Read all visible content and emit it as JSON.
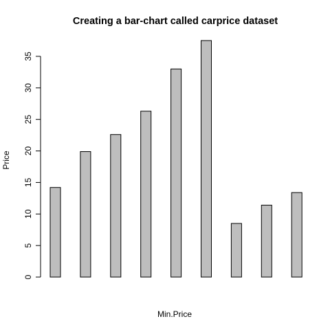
{
  "chart_data": {
    "type": "bar",
    "title": "Creating a bar-chart called carprice dataset",
    "xlabel": "Min.Price",
    "ylabel": "Price",
    "values": [
      14.2,
      19.9,
      22.6,
      26.3,
      33.0,
      37.5,
      8.5,
      11.4,
      13.4
    ],
    "ylim": [
      0,
      37.5
    ],
    "yticks": [
      0,
      5,
      10,
      15,
      20,
      25,
      30,
      35
    ],
    "grid": false,
    "bar_color": "#bebebe",
    "bar_border_color": "#000000"
  }
}
